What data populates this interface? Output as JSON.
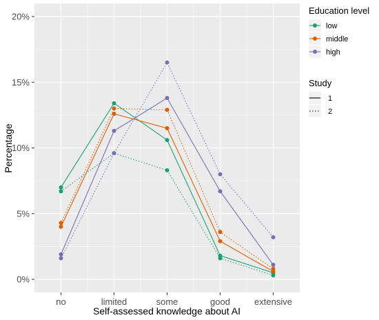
{
  "chart_data": {
    "type": "line",
    "xlabel": "Self-assessed knowledge about AI",
    "ylabel": "Percentage",
    "categories": [
      "no",
      "limited",
      "some",
      "good",
      "extensive"
    ],
    "y_ticks": [
      "0%",
      "5%",
      "10%",
      "15%",
      "20%"
    ],
    "ylim": [
      0,
      20
    ],
    "grid": true,
    "series": [
      {
        "name": "low",
        "education": "low",
        "study": "1",
        "color": "#1b9e77",
        "linetype": "solid",
        "values": [
          7.0,
          13.4,
          10.6,
          1.8,
          0.5
        ]
      },
      {
        "name": "middle",
        "education": "middle",
        "study": "1",
        "color": "#d95f02",
        "linetype": "solid",
        "values": [
          4.0,
          12.6,
          11.5,
          2.9,
          0.6
        ]
      },
      {
        "name": "high",
        "education": "high",
        "study": "1",
        "color": "#7570b3",
        "linetype": "solid",
        "values": [
          1.9,
          11.3,
          13.8,
          6.7,
          1.1
        ]
      },
      {
        "name": "low",
        "education": "low",
        "study": "2",
        "color": "#1b9e77",
        "linetype": "dotted",
        "values": [
          6.7,
          9.6,
          8.3,
          1.6,
          0.3
        ]
      },
      {
        "name": "middle",
        "education": "middle",
        "study": "2",
        "color": "#d95f02",
        "linetype": "dotted",
        "values": [
          4.3,
          13.0,
          12.9,
          3.6,
          0.8
        ]
      },
      {
        "name": "high",
        "education": "high",
        "study": "2",
        "color": "#7570b3",
        "linetype": "dotted",
        "values": [
          1.6,
          9.6,
          16.5,
          8.0,
          3.2
        ]
      }
    ],
    "legend": {
      "placement": "top-right",
      "education_title": "Education level",
      "education_items": [
        {
          "label": "low",
          "color": "#1b9e77"
        },
        {
          "label": "middle",
          "color": "#d95f02"
        },
        {
          "label": "high",
          "color": "#7570b3"
        }
      ],
      "study_title": "Study",
      "study_items": [
        {
          "label": "1",
          "linetype": "solid"
        },
        {
          "label": "2",
          "linetype": "dotted"
        }
      ]
    },
    "colors": {
      "panel_background": "#ebebeb",
      "grid": "#ffffff"
    }
  }
}
